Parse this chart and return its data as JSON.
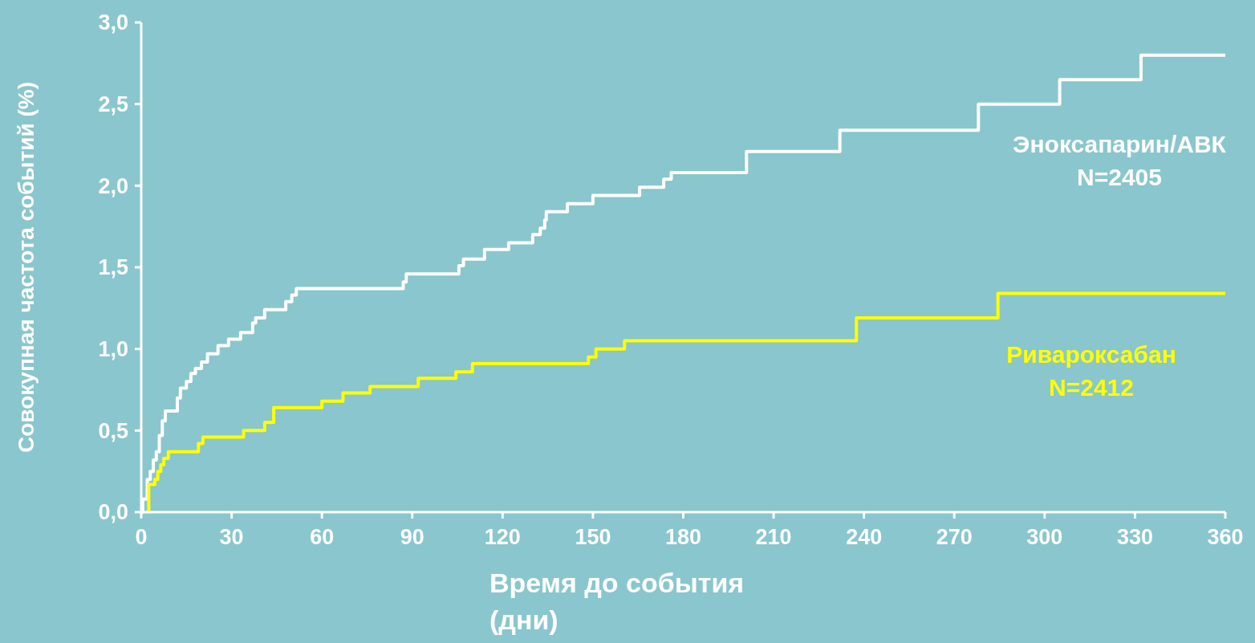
{
  "chart_data": {
    "type": "step",
    "xlabel": "Время до события (дни)",
    "ylabel": "Совокупная частота событий (%)",
    "xlim": [
      0,
      360
    ],
    "xticks": [
      0,
      30,
      60,
      90,
      120,
      150,
      180,
      210,
      240,
      270,
      300,
      330,
      360
    ],
    "ylim": [
      0,
      3
    ],
    "yticks": [
      {
        "value": 0,
        "label": "0,0"
      },
      {
        "value": 0.5,
        "label": "0,5"
      },
      {
        "value": 1,
        "label": "1,0"
      },
      {
        "value": 1.5,
        "label": "1,5"
      },
      {
        "value": 2,
        "label": "2,0"
      },
      {
        "value": 2.5,
        "label": "2,5"
      },
      {
        "value": 3,
        "label": "3,0"
      }
    ],
    "grid": false,
    "legend": false,
    "line_style": "solid",
    "marker": "none",
    "series": [
      {
        "name": "Эноксапарин/АВК N=2405",
        "color": "#ffffff",
        "x": [
          0,
          0.5,
          2,
          3,
          4,
          5,
          6,
          7,
          8,
          12,
          13,
          15,
          16.5,
          18,
          20,
          22,
          25.5,
          29,
          33,
          37,
          38,
          41,
          48,
          50,
          51.5,
          87,
          88,
          105.5,
          107,
          114,
          122,
          130,
          132.5,
          134,
          134.5,
          141.5,
          150,
          165.5,
          173.5,
          176,
          201,
          232,
          278,
          305,
          332,
          360
        ],
        "values": [
          0,
          0.08,
          0.2,
          0.25,
          0.32,
          0.37,
          0.47,
          0.56,
          0.62,
          0.7,
          0.76,
          0.8,
          0.85,
          0.88,
          0.92,
          0.97,
          1.02,
          1.06,
          1.1,
          1.16,
          1.19,
          1.24,
          1.29,
          1.33,
          1.37,
          1.41,
          1.46,
          1.51,
          1.55,
          1.61,
          1.65,
          1.7,
          1.74,
          1.79,
          1.84,
          1.89,
          1.94,
          1.99,
          2.04,
          2.08,
          2.21,
          2.34,
          2.5,
          2.65,
          2.8,
          2.8
        ]
      },
      {
        "name": "Ривароксабан N=2412",
        "color": "#ffff00",
        "x": [
          2,
          2.5,
          4.5,
          5.5,
          6.5,
          7.5,
          9,
          19,
          20.5,
          34,
          41,
          44,
          60,
          67,
          76,
          92,
          104.5,
          110,
          148.5,
          151,
          160.5,
          237.5,
          284.5,
          360
        ],
        "values": [
          0,
          0.17,
          0.2,
          0.25,
          0.29,
          0.33,
          0.37,
          0.42,
          0.46,
          0.5,
          0.55,
          0.64,
          0.68,
          0.73,
          0.77,
          0.82,
          0.86,
          0.91,
          0.95,
          1.0,
          1.05,
          1.19,
          1.34,
          1.34
        ]
      }
    ]
  }
}
